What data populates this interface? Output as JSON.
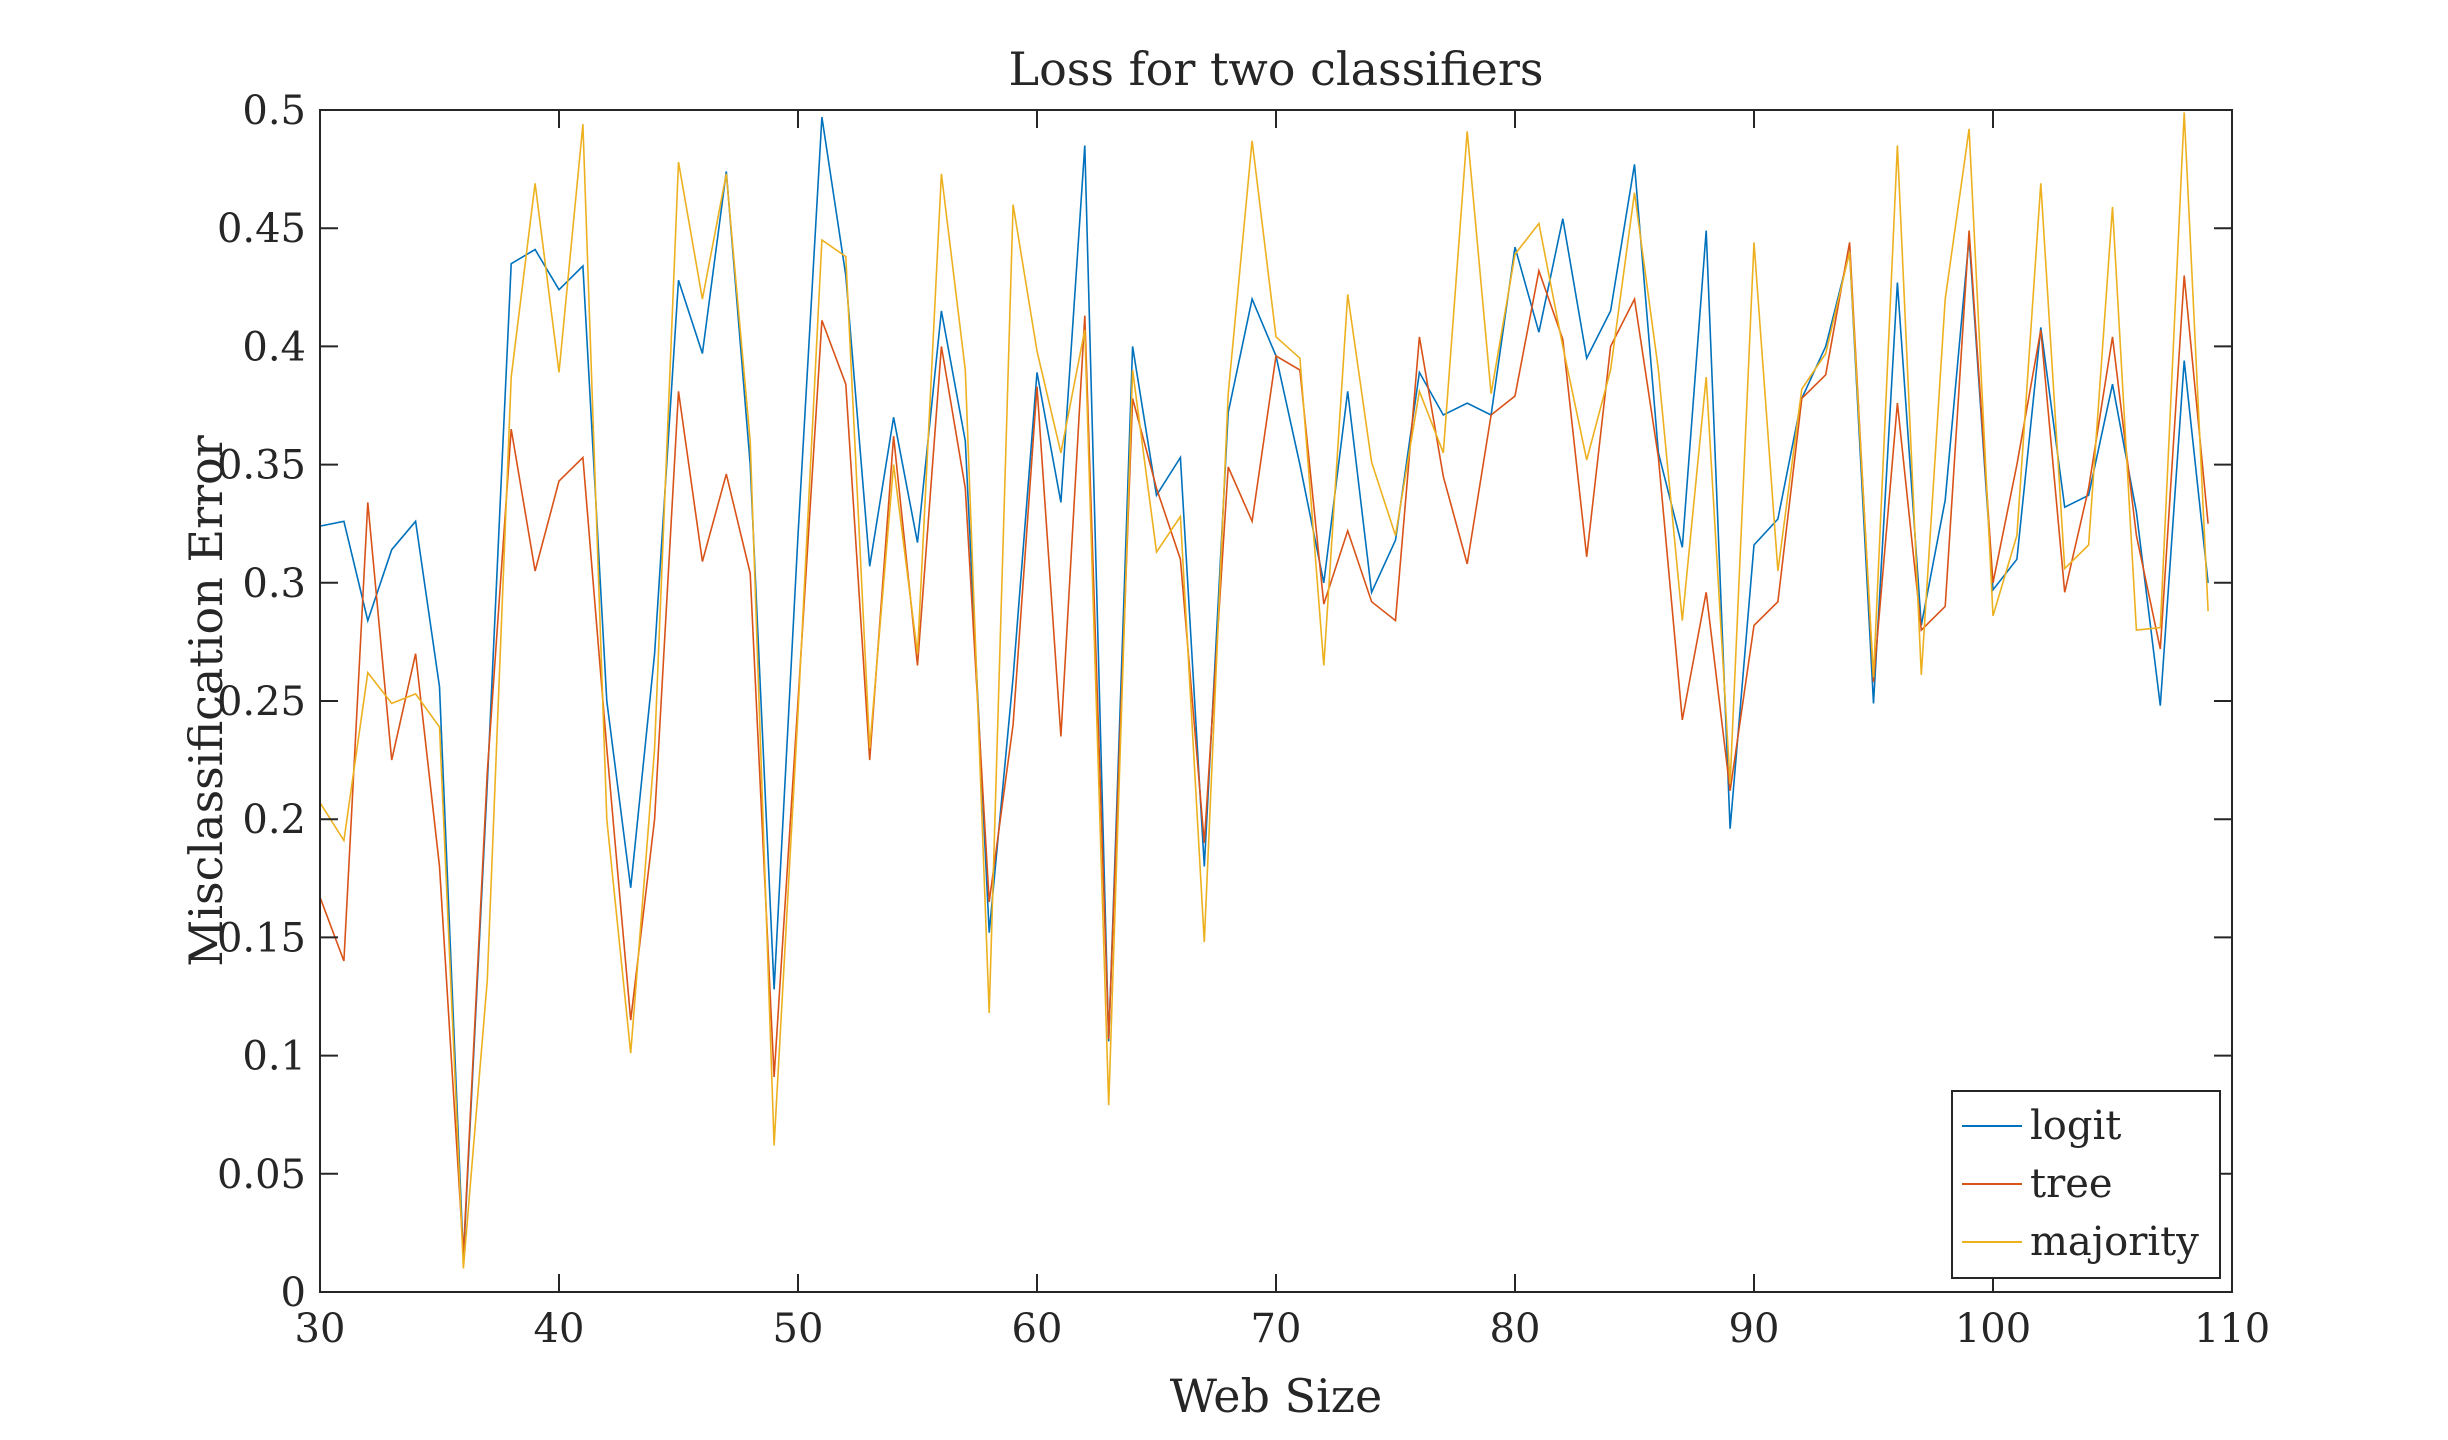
{
  "chart_data": {
    "type": "line",
    "title": "Loss for two classifiers",
    "xlabel": "Web Size",
    "ylabel": "Misclassification Error",
    "xlim": [
      30,
      110
    ],
    "ylim": [
      0,
      0.5
    ],
    "xticks": [
      30,
      40,
      50,
      60,
      70,
      80,
      90,
      100,
      110
    ],
    "yticks": [
      0,
      0.05,
      0.1,
      0.15,
      0.2,
      0.25,
      0.3,
      0.35,
      0.4,
      0.45,
      0.5
    ],
    "xtick_labels": [
      "30",
      "40",
      "50",
      "60",
      "70",
      "80",
      "90",
      "100",
      "110"
    ],
    "ytick_labels": [
      "0",
      "0.05",
      "0.1",
      "0.15",
      "0.2",
      "0.25",
      "0.3",
      "0.35",
      "0.4",
      "0.45",
      "0.5"
    ],
    "grid": false,
    "legend_position": "bottom-right",
    "x": [
      30,
      31,
      32,
      33,
      34,
      35,
      36,
      37,
      38,
      39,
      40,
      41,
      42,
      43,
      44,
      45,
      46,
      47,
      48,
      49,
      50,
      51,
      52,
      53,
      54,
      55,
      56,
      57,
      58,
      59,
      60,
      61,
      62,
      63,
      64,
      65,
      66,
      67,
      68,
      69,
      70,
      71,
      72,
      73,
      74,
      75,
      76,
      77,
      78,
      79,
      80,
      81,
      82,
      83,
      84,
      85,
      86,
      87,
      88,
      89,
      90,
      91,
      92,
      93,
      94,
      95,
      96,
      97,
      98,
      99,
      100,
      101,
      102,
      103,
      104,
      105,
      106,
      107,
      108,
      109
    ],
    "series": [
      {
        "name": "logit",
        "color": "#0072BD",
        "values": [
          0.324,
          0.326,
          0.284,
          0.314,
          0.326,
          0.256,
          0.014,
          0.215,
          0.435,
          0.441,
          0.424,
          0.434,
          0.25,
          0.171,
          0.27,
          0.428,
          0.397,
          0.474,
          0.35,
          0.128,
          0.32,
          0.497,
          0.43,
          0.307,
          0.37,
          0.317,
          0.415,
          0.36,
          0.152,
          0.26,
          0.389,
          0.334,
          0.485,
          0.106,
          0.4,
          0.337,
          0.353,
          0.18,
          0.372,
          0.42,
          0.396,
          0.35,
          0.3,
          0.381,
          0.296,
          0.318,
          0.389,
          0.371,
          0.376,
          0.371,
          0.442,
          0.406,
          0.454,
          0.395,
          0.415,
          0.477,
          0.355,
          0.315,
          0.449,
          0.196,
          0.316,
          0.327,
          0.378,
          0.4,
          0.44,
          0.249,
          0.427,
          0.282,
          0.335,
          0.446,
          0.297,
          0.31,
          0.408,
          0.332,
          0.337,
          0.384,
          0.33,
          0.248,
          0.394,
          0.3
        ]
      },
      {
        "name": "tree",
        "color": "#D95319",
        "values": [
          0.167,
          0.14,
          0.334,
          0.225,
          0.27,
          0.18,
          0.016,
          0.22,
          0.365,
          0.305,
          0.343,
          0.353,
          0.23,
          0.115,
          0.2,
          0.381,
          0.309,
          0.346,
          0.304,
          0.091,
          0.25,
          0.411,
          0.384,
          0.225,
          0.362,
          0.265,
          0.4,
          0.34,
          0.165,
          0.24,
          0.383,
          0.235,
          0.413,
          0.107,
          0.378,
          0.34,
          0.31,
          0.19,
          0.349,
          0.326,
          0.396,
          0.39,
          0.291,
          0.322,
          0.292,
          0.284,
          0.404,
          0.345,
          0.308,
          0.371,
          0.379,
          0.432,
          0.403,
          0.311,
          0.4,
          0.42,
          0.353,
          0.242,
          0.296,
          0.212,
          0.282,
          0.292,
          0.378,
          0.388,
          0.444,
          0.258,
          0.376,
          0.28,
          0.29,
          0.449,
          0.3,
          0.35,
          0.407,
          0.296,
          0.34,
          0.404,
          0.32,
          0.272,
          0.43,
          0.325
        ]
      },
      {
        "name": "majority",
        "color": "#EDB120",
        "values": [
          0.207,
          0.191,
          0.262,
          0.249,
          0.253,
          0.239,
          0.01,
          0.132,
          0.387,
          0.469,
          0.389,
          0.494,
          0.2,
          0.101,
          0.23,
          0.478,
          0.42,
          0.473,
          0.36,
          0.062,
          0.245,
          0.445,
          0.438,
          0.23,
          0.35,
          0.27,
          0.473,
          0.39,
          0.118,
          0.46,
          0.398,
          0.355,
          0.407,
          0.079,
          0.39,
          0.313,
          0.328,
          0.148,
          0.38,
          0.487,
          0.404,
          0.395,
          0.265,
          0.422,
          0.351,
          0.32,
          0.381,
          0.355,
          0.491,
          0.38,
          0.439,
          0.452,
          0.4,
          0.352,
          0.39,
          0.465,
          0.39,
          0.284,
          0.387,
          0.215,
          0.444,
          0.305,
          0.382,
          0.397,
          0.44,
          0.26,
          0.485,
          0.261,
          0.42,
          0.492,
          0.286,
          0.32,
          0.469,
          0.306,
          0.316,
          0.459,
          0.28,
          0.281,
          0.499,
          0.288
        ]
      }
    ]
  }
}
